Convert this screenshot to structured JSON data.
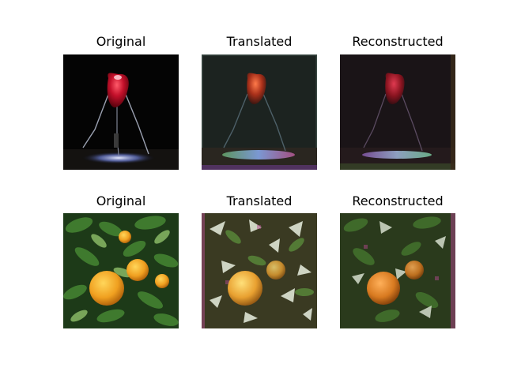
{
  "rows": [
    {
      "panels": [
        {
          "title": "Original",
          "image": "red-apple-on-wire-stand"
        },
        {
          "title": "Translated",
          "image": "translated-apple-stand"
        },
        {
          "title": "Reconstructed",
          "image": "reconstructed-apple-stand"
        }
      ]
    },
    {
      "panels": [
        {
          "title": "Original",
          "image": "oranges-on-tree"
        },
        {
          "title": "Translated",
          "image": "translated-oranges"
        },
        {
          "title": "Reconstructed",
          "image": "reconstructed-oranges"
        }
      ]
    }
  ]
}
